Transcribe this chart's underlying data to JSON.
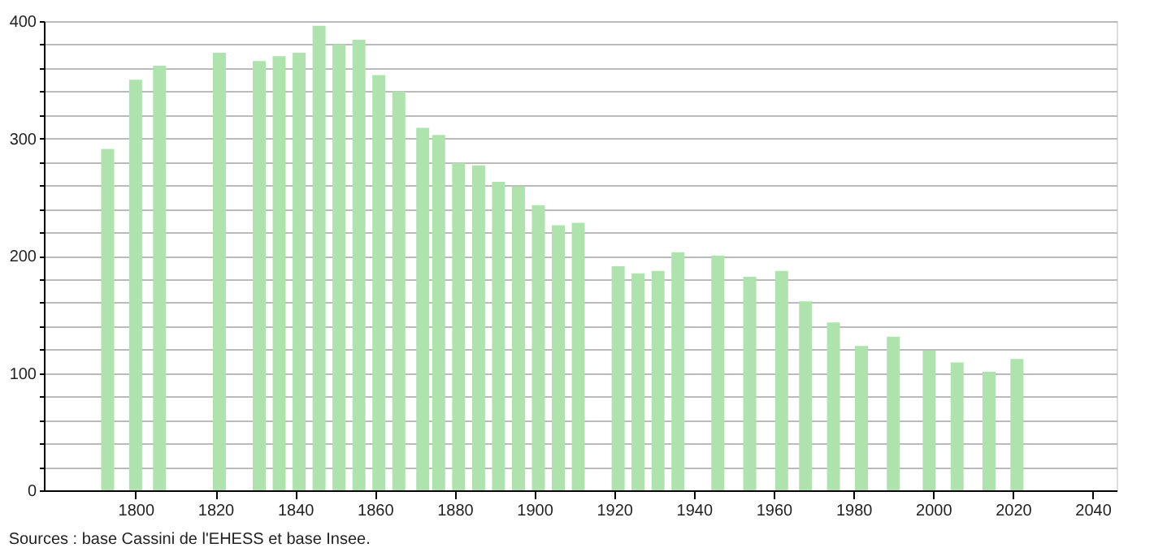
{
  "chart_data": {
    "type": "bar",
    "x": [
      1793,
      1800,
      1806,
      1821,
      1831,
      1836,
      1841,
      1846,
      1851,
      1856,
      1861,
      1866,
      1872,
      1876,
      1881,
      1886,
      1891,
      1896,
      1901,
      1906,
      1911,
      1921,
      1926,
      1931,
      1936,
      1946,
      1954,
      1962,
      1968,
      1975,
      1982,
      1990,
      1999,
      2006,
      2014,
      2021
    ],
    "series": [
      {
        "color": "#aee3ae",
        "values": [
          291,
          350,
          362,
          373,
          366,
          370,
          373,
          396,
          380,
          384,
          354,
          340,
          309,
          303,
          279,
          277,
          263,
          259,
          243,
          226,
          228,
          191,
          185,
          187,
          203,
          200,
          182,
          187,
          161,
          143,
          123,
          131,
          119,
          109,
          101,
          112
        ]
      }
    ],
    "xlim": [
      1777,
      2046
    ],
    "xticks": [
      1800,
      1820,
      1840,
      1860,
      1880,
      1900,
      1920,
      1940,
      1960,
      1980,
      2000,
      2020,
      2040
    ],
    "ylim": [
      0,
      400
    ],
    "yticks": [
      0,
      {
        "value": 20,
        "label": null
      },
      {
        "value": 40,
        "label": null
      },
      {
        "value": 60,
        "label": null
      },
      {
        "value": 80,
        "label": null
      },
      100,
      {
        "value": 120,
        "label": null
      },
      {
        "value": 140,
        "label": null
      },
      {
        "value": 160,
        "label": null
      },
      {
        "value": 180,
        "label": null
      },
      200,
      {
        "value": 220,
        "label": null
      },
      {
        "value": 240,
        "label": null
      },
      {
        "value": 260,
        "label": null
      },
      {
        "value": 280,
        "label": null
      },
      300,
      {
        "value": 320,
        "label": null
      },
      {
        "value": 340,
        "label": null
      },
      {
        "value": 360,
        "label": null
      },
      {
        "value": 380,
        "label": null
      },
      400
    ],
    "grid": "y",
    "annotations": [
      "Sources : base Cassini de l'EHESS et base Insee."
    ]
  }
}
